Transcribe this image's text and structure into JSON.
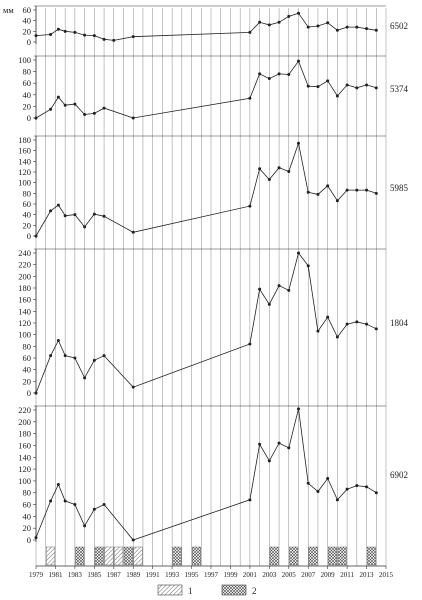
{
  "chart_data": [
    {
      "type": "line",
      "station": "6502",
      "unit": "мм",
      "ylim": [
        0,
        60
      ],
      "yticks": [
        0,
        20,
        40,
        60
      ],
      "x": [
        1979,
        1980.5,
        1981.3,
        1982,
        1983,
        1984,
        1985,
        1986,
        1987,
        1989,
        2001,
        2002,
        2003,
        2004,
        2005,
        2006,
        2007,
        2008,
        2009,
        2010,
        2011,
        2012,
        2013,
        2014
      ],
      "y": [
        12,
        14,
        24,
        20,
        18,
        13,
        12,
        5,
        3,
        10,
        18,
        37,
        32,
        37,
        48,
        54,
        28,
        30,
        36,
        22,
        28,
        28,
        25,
        22
      ]
    },
    {
      "type": "line",
      "station": "5374",
      "ylim": [
        0,
        100
      ],
      "yticks": [
        0,
        20,
        40,
        60,
        80,
        100
      ],
      "x": [
        1979,
        1980.5,
        1981.3,
        1982,
        1983,
        1984,
        1985,
        1986,
        1989,
        2001,
        2002,
        2003,
        2004,
        2005,
        2006,
        2007,
        2008,
        2009,
        2010,
        2011,
        2012,
        2013,
        2014
      ],
      "y": [
        0,
        15,
        36,
        22,
        24,
        6,
        8,
        17,
        0,
        34,
        76,
        68,
        76,
        75,
        98,
        55,
        54,
        64,
        38,
        57,
        52,
        57,
        52
      ]
    },
    {
      "type": "line",
      "station": "5985",
      "ylim": [
        0,
        180
      ],
      "yticks": [
        0,
        20,
        40,
        60,
        80,
        100,
        120,
        140,
        160,
        180
      ],
      "x": [
        1979,
        1980.5,
        1981.3,
        1982,
        1983,
        1984,
        1985,
        1986,
        1989,
        2001,
        2002,
        2003,
        2004,
        2005,
        2006,
        2007,
        2008,
        2009,
        2010,
        2011,
        2012,
        2013,
        2014
      ],
      "y": [
        0,
        47,
        58,
        38,
        40,
        17,
        41,
        37,
        7,
        56,
        126,
        106,
        128,
        121,
        174,
        82,
        78,
        94,
        66,
        86,
        86,
        86,
        80
      ]
    },
    {
      "type": "line",
      "station": "1804",
      "ylim": [
        0,
        240
      ],
      "yticks": [
        0,
        20,
        40,
        60,
        80,
        100,
        120,
        140,
        160,
        180,
        200,
        220,
        240
      ],
      "x": [
        1979,
        1980.5,
        1981.3,
        1982,
        1983,
        1984,
        1985,
        1986,
        1989,
        2001,
        2002,
        2003,
        2004,
        2005,
        2006,
        2007,
        2008,
        2009,
        2010,
        2011,
        2012,
        2013,
        2014
      ],
      "y": [
        0,
        64,
        90,
        64,
        60,
        26,
        56,
        64,
        10,
        84,
        178,
        152,
        184,
        176,
        240,
        218,
        106,
        130,
        96,
        118,
        122,
        118,
        110
      ]
    },
    {
      "type": "line",
      "station": "6902",
      "ylim": [
        0,
        220
      ],
      "yticks": [
        0,
        20,
        40,
        60,
        80,
        100,
        120,
        140,
        160,
        180,
        200,
        220
      ],
      "x": [
        1979,
        1980.5,
        1981.3,
        1982,
        1983,
        1984,
        1985,
        1986,
        1989,
        2001,
        2002,
        2003,
        2004,
        2005,
        2006,
        2007,
        2008,
        2009,
        2010,
        2011,
        2012,
        2013,
        2014
      ],
      "y": [
        4,
        66,
        94,
        66,
        60,
        24,
        52,
        60,
        0,
        68,
        162,
        134,
        164,
        156,
        222,
        96,
        82,
        104,
        68,
        86,
        92,
        90,
        80
      ]
    }
  ],
  "x_axis": {
    "labels": [
      "1979",
      "1981",
      "1983",
      "1985",
      "1987",
      "1989",
      "1991",
      "1993",
      "1995",
      "1997",
      "1999",
      "2001",
      "2003",
      "2005",
      "2007",
      "2009",
      "2011",
      "2013",
      "2015"
    ],
    "gridlines": [
      1979,
      1980,
      1981,
      1982,
      1983,
      1984,
      1985,
      1986,
      1987,
      1988,
      1989,
      1990,
      1991,
      1992,
      1993,
      1994,
      1995,
      1996,
      1997,
      1998,
      1999,
      2000,
      2001,
      2002,
      2003,
      2004,
      2005,
      2006,
      2007,
      2008,
      2009,
      2010,
      2011,
      2012,
      2013,
      2014,
      2015
    ]
  },
  "year_marks": [
    {
      "year": 1980,
      "type": "1"
    },
    {
      "year": 1983,
      "type": "2"
    },
    {
      "year": 1985,
      "type": "2"
    },
    {
      "year": 1986,
      "type": "1"
    },
    {
      "year": 1987,
      "type": "1"
    },
    {
      "year": 1988,
      "type": "2"
    },
    {
      "year": 1989,
      "type": "1"
    },
    {
      "year": 1993,
      "type": "2"
    },
    {
      "year": 1995,
      "type": "2"
    },
    {
      "year": 2003,
      "type": "2"
    },
    {
      "year": 2005,
      "type": "2"
    },
    {
      "year": 2007,
      "type": "2"
    },
    {
      "year": 2009,
      "type": "2"
    },
    {
      "year": 2010,
      "type": "2"
    },
    {
      "year": 2013,
      "type": "2"
    }
  ],
  "legend": [
    {
      "label": "1",
      "pattern": "diagonal-hatch"
    },
    {
      "label": "2",
      "pattern": "cross-hatch"
    }
  ],
  "colors": {
    "line": "#222222",
    "grid": "#888888",
    "axis": "#333333",
    "text": "#222222"
  }
}
